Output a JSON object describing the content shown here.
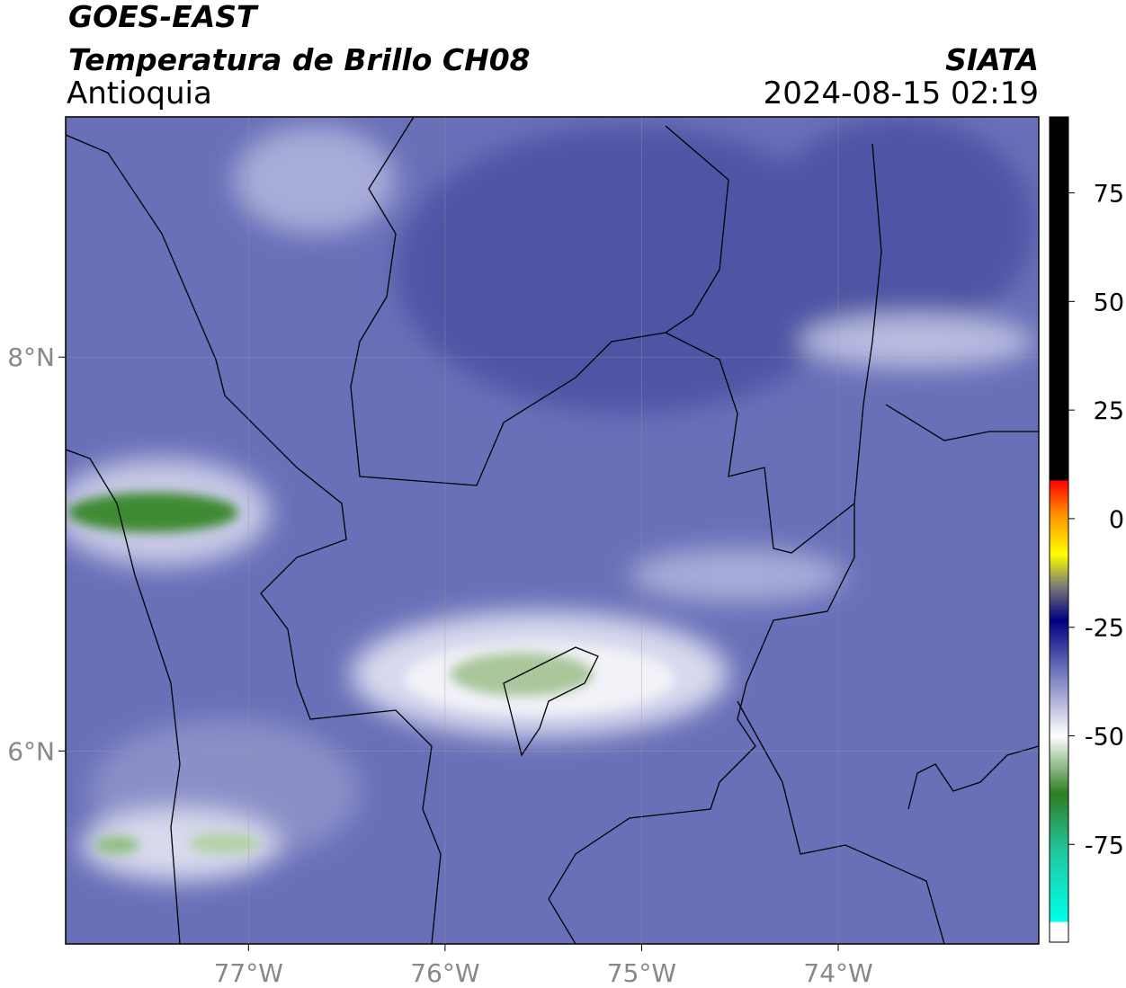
{
  "header": {
    "title": "GOES-EAST",
    "subtitle": "Temperatura de Brillo CH08",
    "region": "Antioquia",
    "agency": "SIATA",
    "datetime": "2024-08-15 02:19"
  },
  "map": {
    "xlim": [
      -77.93,
      -72.98
    ],
    "ylim": [
      5.02,
      9.22
    ],
    "xticks": [
      {
        "value": -77,
        "label": "77°W"
      },
      {
        "value": -76,
        "label": "76°W"
      },
      {
        "value": -75,
        "label": "75°W"
      },
      {
        "value": -74,
        "label": "74°W"
      }
    ],
    "yticks": [
      {
        "value": 8,
        "label": "8°N"
      },
      {
        "value": 6,
        "label": "6°N"
      }
    ],
    "grid": true
  },
  "colorbar": {
    "lim": [
      -97.5,
      92.5
    ],
    "ticks": [
      75,
      50,
      25,
      0,
      -25,
      -50,
      -75
    ]
  }
}
